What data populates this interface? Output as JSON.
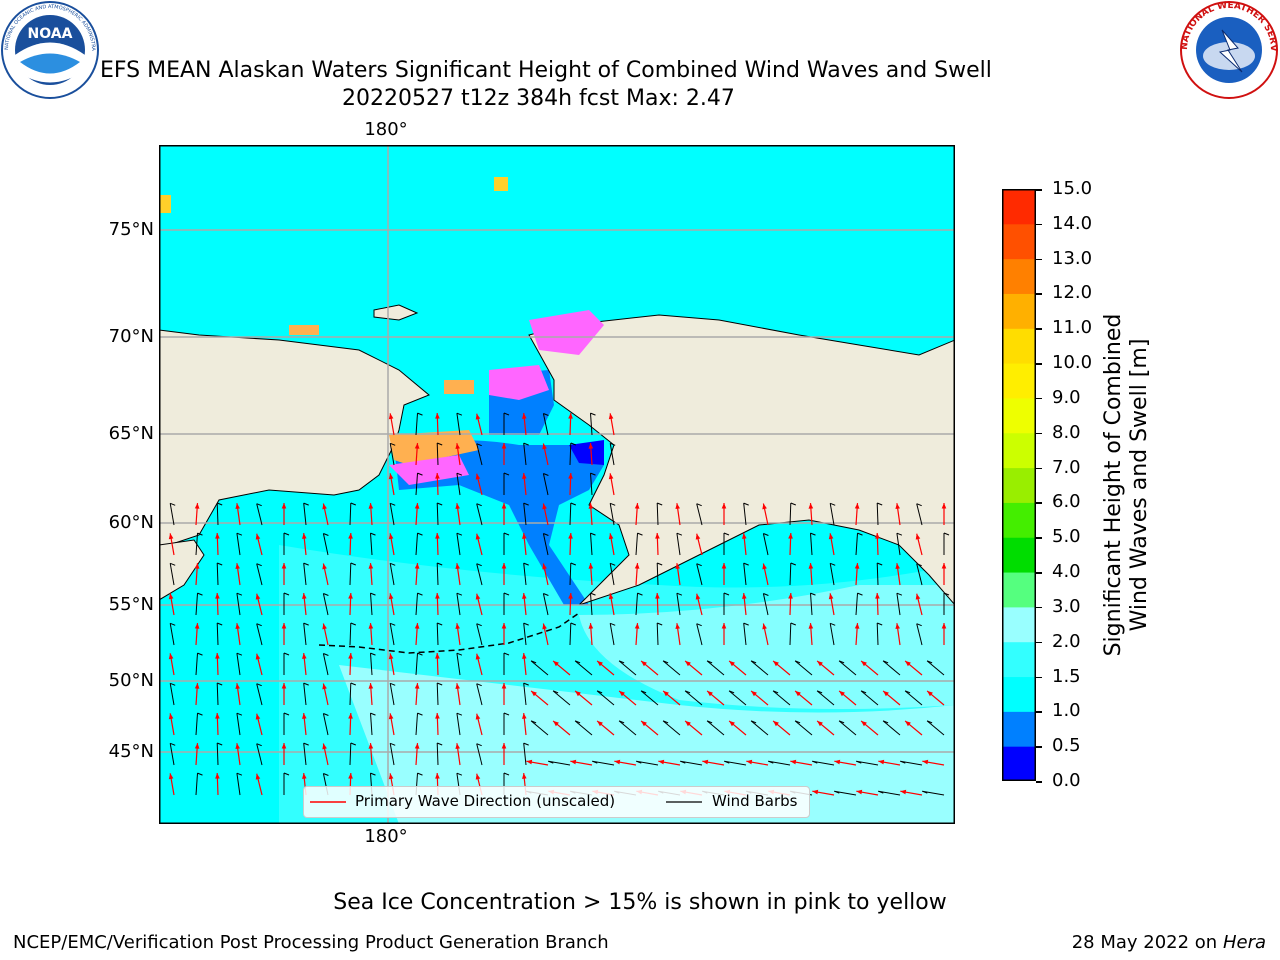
{
  "header": {
    "title_line1": "EFS MEAN Alaskan Waters Significant Height of Combined Wind Waves and Swell",
    "title_line2": "20220527 t12z 384h fcst   Max: 2.47",
    "noaa_logo_text": "NOAA",
    "noaa_ring_text": "NATIONAL OCEANIC AND ATMOSPHERIC ADMINISTRATION · U.S. DEPARTMENT OF COMMERCE",
    "nws_ring_text": "NATIONAL WEATHER SERVICE"
  },
  "map": {
    "lat_labels": [
      "75°N",
      "70°N",
      "65°N",
      "60°N",
      "55°N",
      "50°N",
      "45°N"
    ],
    "lon_label_top": "180°",
    "lon_label_bottom": "180°",
    "legend": {
      "wave_label": "Primary Wave Direction (unscaled)",
      "wind_label": "Wind Barbs",
      "wave_color": "#ff0000",
      "wind_color": "#000000"
    },
    "colors": {
      "ocean_main": "#00ffff",
      "ocean_light": "#33ffff",
      "ocean_pale": "#99ffff",
      "shallow": "#0080ff",
      "land": "#efecdc",
      "ice_pink": "#ff66ff",
      "ice_orange": "#ffb050",
      "ice_yellow": "#ffd02a"
    }
  },
  "colorbar": {
    "label_line1": "Significant Height of Combined",
    "label_line2": "Wind Waves and Swell [m]",
    "ticks": [
      "15.0",
      "14.0",
      "13.0",
      "12.0",
      "11.0",
      "10.0",
      "9.0",
      "8.0",
      "7.0",
      "6.0",
      "5.0",
      "4.0",
      "3.0",
      "2.0",
      "1.5",
      "1.0",
      "0.5",
      "0.0"
    ],
    "colors_bottom_to_top": [
      "#0000ff",
      "#0080ff",
      "#00ffff",
      "#33ffff",
      "#99ffff",
      "#55ff7f",
      "#00dd00",
      "#44ee00",
      "#99ee00",
      "#ccff00",
      "#eeff00",
      "#ffee00",
      "#ffdd00",
      "#ffb000",
      "#ff8000",
      "#ff5000",
      "#ff2a00",
      "#ff0000"
    ]
  },
  "notes": {
    "ice": "Sea Ice Concentration > 15% is shown in pink to yellow"
  },
  "footer": {
    "left": "NCEP/EMC/Verification Post Processing Product Generation Branch",
    "right_date": "28 May 2022 on",
    "right_host": "Hera"
  }
}
